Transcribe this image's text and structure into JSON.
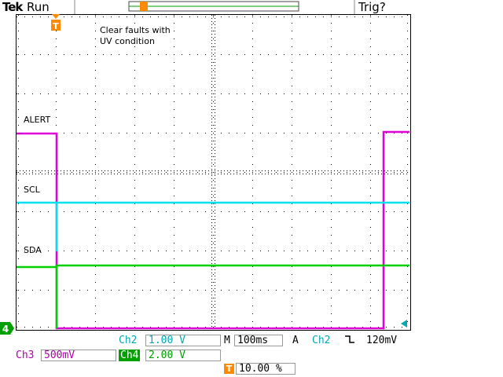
{
  "header": {
    "brand": "Tek",
    "state": "Run",
    "trigger_status": "Trig?",
    "trigger_marker": "T"
  },
  "annotation": [
    "Clear faults with",
    "UV condition"
  ],
  "channels": {
    "alert": {
      "label": "ALERT",
      "color": "#e000d8"
    },
    "scl": {
      "label": "SCL",
      "color": "#00e0f0"
    },
    "sda": {
      "label": "SDA",
      "color": "#00d000"
    }
  },
  "ground_marker": "4",
  "footer": {
    "ch2_label": "Ch2",
    "ch2_scale": "1.00 V",
    "timebase_prefix": "M",
    "timebase": "100ms",
    "trigger_mode": "A",
    "trigger_source": "Ch2",
    "trigger_slope": "⌐",
    "trigger_level": "120mV",
    "ch3_label": "Ch3",
    "ch3_scale": "500mV",
    "ch4_label": "Ch4",
    "ch4_scale": "2.00 V",
    "trig_pos_marker": "T",
    "trig_pos": "10.00 %"
  },
  "colors": {
    "grid": "#000000",
    "ch2": "#00a8b0",
    "ch3": "#b000a8",
    "ch4": "#00a000",
    "trigger": "#ff8a00"
  }
}
